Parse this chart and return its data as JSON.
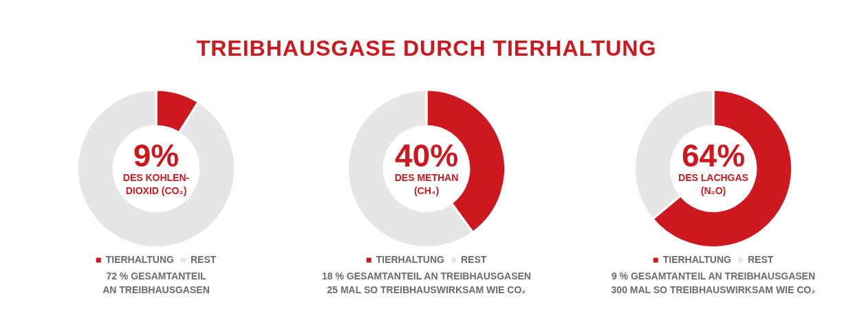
{
  "chart_data": [
    {
      "type": "donut",
      "title": "TREIBHAUSGASE DURCH TIERHALTUNG",
      "subtitle": "DES KOHLEN-DIOXID (CO₂)",
      "categories": [
        "TIERHALTUNG",
        "REST"
      ],
      "values": [
        9,
        91
      ],
      "colors": [
        "#cc181e",
        "#e6e6e6"
      ],
      "value_labels": [
        "9%",
        null
      ],
      "legend": "bottom",
      "annotations": [
        "72 % GESAMTANTEIL AN TREIBHAUSGASEN"
      ]
    },
    {
      "type": "donut",
      "subtitle": "DES METHAN (CH₄)",
      "categories": [
        "TIERHALTUNG",
        "REST"
      ],
      "values": [
        40,
        60
      ],
      "colors": [
        "#cc181e",
        "#e6e6e6"
      ],
      "value_labels": [
        "40%",
        null
      ],
      "legend": "bottom",
      "annotations": [
        "18 % GESAMTANTEIL AN TREIBHAUSGASEN",
        "25 MAL SO TREIBHAUSWIRKSAM WIE CO₂"
      ]
    },
    {
      "type": "donut",
      "subtitle": "DES LACHGAS (N₂O)",
      "categories": [
        "TIERHALTUNG",
        "REST"
      ],
      "values": [
        64,
        36
      ],
      "colors": [
        "#cc181e",
        "#e6e6e6"
      ],
      "value_labels": [
        "64%",
        null
      ],
      "legend": "bottom",
      "annotations": [
        "9 % GESAMTANTEIL AN TREIBHAUSGASEN",
        "300 MAL SO TREIBHAUSWIRKSAM WIE CO₂"
      ]
    }
  ]
}
